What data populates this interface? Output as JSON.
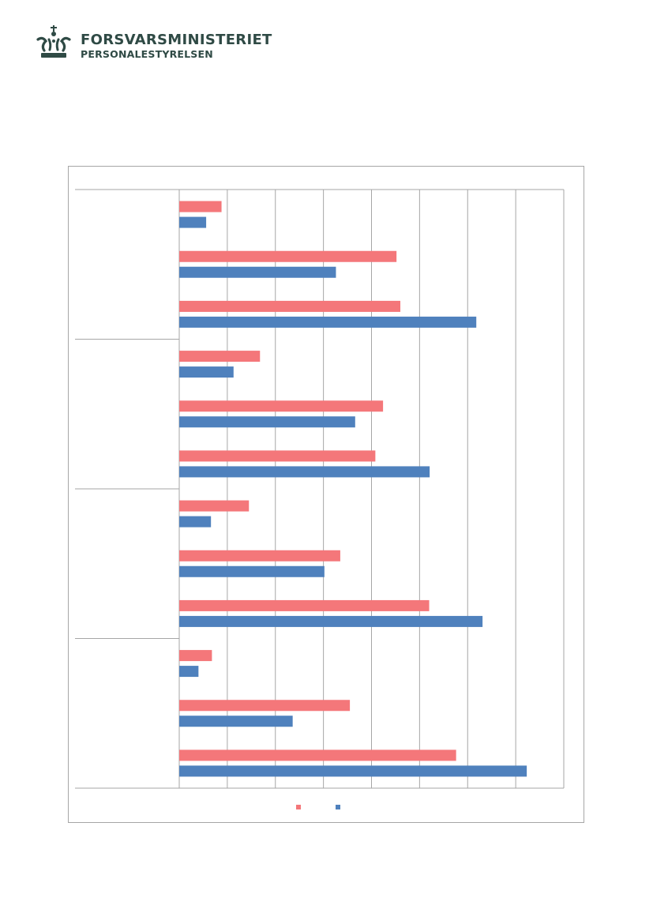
{
  "header": {
    "org_name": "FORSVARSMINISTERIET",
    "org_sub": "PERSONALESTYRELSEN",
    "logo_icon": "crown-icon"
  },
  "colors": {
    "series_a": "#f4777a",
    "series_b": "#4f81bd",
    "grid": "#a6a6a6",
    "brand": "#2f4a45"
  },
  "chart_data": {
    "type": "bar",
    "orientation": "horizontal",
    "title": "",
    "xlabel": "",
    "ylabel": "",
    "xlim": [
      0,
      8
    ],
    "grid": true,
    "legend": "bottom",
    "groups": 4,
    "categories_per_group": 3,
    "categories": [
      "",
      "",
      "",
      "",
      "",
      "",
      "",
      "",
      "",
      "",
      "",
      ""
    ],
    "series": [
      {
        "values": [
          0.88,
          4.52,
          4.6,
          1.68,
          4.24,
          4.08,
          1.45,
          3.35,
          5.2,
          0.68,
          3.55,
          5.76
        ]
      },
      {
        "values": [
          0.56,
          3.26,
          6.18,
          1.13,
          3.66,
          5.21,
          0.66,
          3.02,
          6.31,
          0.4,
          2.36,
          7.23
        ]
      }
    ]
  }
}
